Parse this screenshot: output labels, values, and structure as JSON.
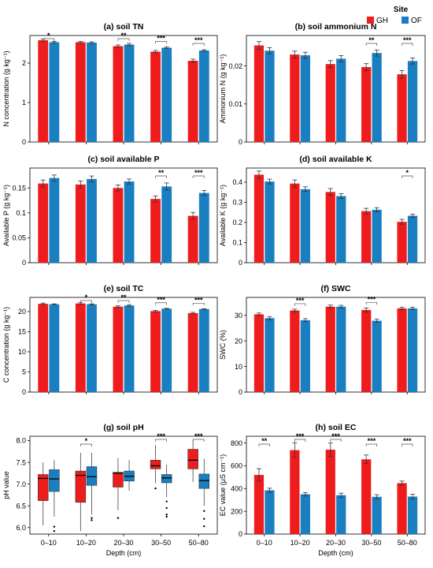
{
  "legend": {
    "title": "Site",
    "items": [
      {
        "label": "GH",
        "color": "#ee1c1c"
      },
      {
        "label": "OF",
        "color": "#1a7fc1"
      }
    ]
  },
  "colors": {
    "GH": "#ee1c1c",
    "OF": "#1a7fc1"
  },
  "chart_data": [
    {
      "type": "bar",
      "title": "(a) soil TN",
      "ylabel": "N concentration (g kg⁻¹)",
      "xlabel": "",
      "categories": [
        "0–10",
        "10–20",
        "20–30",
        "30–50",
        "50–80"
      ],
      "ylim": [
        0,
        2.7
      ],
      "yticks": [
        0,
        1,
        2
      ],
      "ytick_labels": [
        "0",
        "1",
        "2"
      ],
      "show_xticklabels": false,
      "series": [
        {
          "name": "GH",
          "values": [
            2.58,
            2.53,
            2.43,
            2.29,
            2.06
          ],
          "errors": [
            0.03,
            0.02,
            0.03,
            0.03,
            0.04
          ]
        },
        {
          "name": "OF",
          "values": [
            2.53,
            2.52,
            2.47,
            2.39,
            2.32
          ],
          "errors": [
            0.02,
            0.02,
            0.03,
            0.02,
            0.02
          ]
        }
      ],
      "significance": [
        "*",
        "",
        "**",
        "***",
        "***"
      ]
    },
    {
      "type": "bar",
      "title": "(b) soil ammonium N",
      "ylabel": "Ammonium N (g kg⁻¹)",
      "xlabel": "",
      "categories": [
        "0–10",
        "10–20",
        "20–30",
        "30–50",
        "50–80"
      ],
      "ylim": [
        0,
        0.028
      ],
      "yticks": [
        0,
        0.01,
        0.02
      ],
      "ytick_labels": [
        "0",
        "0.01",
        "0.02"
      ],
      "show_xticklabels": false,
      "series": [
        {
          "name": "GH",
          "values": [
            0.0254,
            0.023,
            0.0205,
            0.0197,
            0.0178
          ],
          "errors": [
            0.001,
            0.0009,
            0.0009,
            0.0009,
            0.001
          ]
        },
        {
          "name": "OF",
          "values": [
            0.024,
            0.0228,
            0.0219,
            0.0234,
            0.0213
          ],
          "errors": [
            0.0008,
            0.0008,
            0.0008,
            0.0008,
            0.0008
          ]
        }
      ],
      "significance": [
        "",
        "",
        "",
        "**",
        "***"
      ]
    },
    {
      "type": "bar",
      "title": "(c) soil available P",
      "ylabel": "Available P (g kg⁻¹)",
      "xlabel": "",
      "categories": [
        "0–10",
        "10–20",
        "20–30",
        "30–50",
        "50–80"
      ],
      "ylim": [
        0,
        0.19
      ],
      "yticks": [
        0,
        0.05,
        0.1,
        0.15
      ],
      "ytick_labels": [
        "0",
        "0.05",
        "0.1",
        "0.15"
      ],
      "show_xticklabels": false,
      "series": [
        {
          "name": "GH",
          "values": [
            0.159,
            0.157,
            0.15,
            0.128,
            0.094
          ],
          "errors": [
            0.007,
            0.007,
            0.006,
            0.006,
            0.007
          ]
        },
        {
          "name": "OF",
          "values": [
            0.17,
            0.168,
            0.163,
            0.153,
            0.14
          ],
          "errors": [
            0.006,
            0.006,
            0.005,
            0.007,
            0.005
          ]
        }
      ],
      "significance": [
        "",
        "",
        "",
        "**",
        "***"
      ]
    },
    {
      "type": "bar",
      "title": "(d) soil available K",
      "ylabel": "Available K (g kg⁻¹)",
      "xlabel": "",
      "categories": [
        "0–10",
        "10–20",
        "20–30",
        "30–50",
        "50–80"
      ],
      "ylim": [
        0,
        0.47
      ],
      "yticks": [
        0,
        0.1,
        0.2,
        0.3,
        0.4
      ],
      "ytick_labels": [
        "0",
        "0.1",
        "0.2",
        "0.3",
        "0.4"
      ],
      "show_xticklabels": false,
      "series": [
        {
          "name": "GH",
          "values": [
            0.437,
            0.393,
            0.351,
            0.256,
            0.203
          ],
          "errors": [
            0.018,
            0.018,
            0.017,
            0.014,
            0.012
          ]
        },
        {
          "name": "OF",
          "values": [
            0.403,
            0.365,
            0.331,
            0.263,
            0.233
          ],
          "errors": [
            0.012,
            0.012,
            0.012,
            0.01,
            0.008
          ]
        }
      ],
      "significance": [
        "",
        "",
        "",
        "",
        "*"
      ]
    },
    {
      "type": "bar",
      "title": "(e) soil TC",
      "ylabel": "C concentration (g kg⁻¹)",
      "xlabel": "",
      "categories": [
        "0–10",
        "10–20",
        "20–30",
        "30–50",
        "50–80"
      ],
      "ylim": [
        0,
        23.5
      ],
      "yticks": [
        0,
        5,
        10,
        15,
        20
      ],
      "ytick_labels": [
        "0",
        "5",
        "10",
        "15",
        "20"
      ],
      "show_xticklabels": false,
      "series": [
        {
          "name": "GH",
          "values": [
            21.9,
            22.0,
            21.2,
            20.1,
            19.6
          ],
          "errors": [
            0.2,
            0.2,
            0.2,
            0.2,
            0.2
          ]
        },
        {
          "name": "OF",
          "values": [
            21.8,
            21.8,
            21.5,
            20.7,
            20.6
          ],
          "errors": [
            0.1,
            0.1,
            0.2,
            0.1,
            0.1
          ]
        }
      ],
      "significance": [
        "",
        "*",
        "**",
        "***",
        "***"
      ]
    },
    {
      "type": "bar",
      "title": "(f) SWC",
      "ylabel": "SWC (%)",
      "xlabel": "",
      "categories": [
        "0–10",
        "10–20",
        "20–30",
        "30–50",
        "50–80"
      ],
      "ylim": [
        0,
        37
      ],
      "yticks": [
        0,
        10,
        20,
        30
      ],
      "ytick_labels": [
        "0",
        "10",
        "20",
        "30"
      ],
      "show_xticklabels": false,
      "series": [
        {
          "name": "GH",
          "values": [
            30.4,
            31.9,
            33.4,
            32.1,
            32.7
          ],
          "errors": [
            0.5,
            0.5,
            0.6,
            0.8,
            0.5
          ]
        },
        {
          "name": "OF",
          "values": [
            28.9,
            28.1,
            33.4,
            27.9,
            32.7
          ],
          "errors": [
            0.6,
            0.6,
            0.5,
            0.6,
            0.5
          ]
        }
      ],
      "significance": [
        "",
        "***",
        "",
        "***",
        ""
      ]
    },
    {
      "type": "box",
      "title": "(g) soil pH",
      "ylabel": "pH value",
      "xlabel": "Depth (cm)",
      "categories": [
        "0–10",
        "10–20",
        "20–30",
        "30–50",
        "50–80"
      ],
      "ylim": [
        5.85,
        8.1
      ],
      "yticks": [
        6.0,
        6.5,
        7.0,
        7.5,
        8.0
      ],
      "ytick_labels": [
        "6.0",
        "6.5",
        "7.0",
        "7.5",
        "8.0"
      ],
      "show_xticklabels": true,
      "series": [
        {
          "name": "GH",
          "boxes": [
            {
              "whislo": 6.05,
              "q1": 6.62,
              "med": 7.13,
              "q3": 7.22,
              "whishi": 7.5,
              "fliers": []
            },
            {
              "whislo": 5.92,
              "q1": 6.58,
              "med": 7.2,
              "q3": 7.3,
              "whishi": 7.72,
              "fliers": []
            },
            {
              "whislo": 6.4,
              "q1": 6.93,
              "med": 7.25,
              "q3": 7.27,
              "whishi": 7.6,
              "fliers": [
                6.22
              ]
            },
            {
              "whislo": 7.02,
              "q1": 7.35,
              "med": 7.42,
              "q3": 7.55,
              "whishi": 7.9,
              "fliers": [
                6.9
              ]
            },
            {
              "whislo": 7.05,
              "q1": 7.35,
              "med": 7.55,
              "q3": 7.8,
              "whishi": 8.02,
              "fliers": []
            }
          ]
        },
        {
          "name": "OF",
          "boxes": [
            {
              "whislo": 6.25,
              "q1": 6.83,
              "med": 7.12,
              "q3": 7.33,
              "whishi": 7.55,
              "fliers": [
                6.02,
                5.92
              ]
            },
            {
              "whislo": 6.3,
              "q1": 6.97,
              "med": 7.17,
              "q3": 7.4,
              "whishi": 7.72,
              "fliers": [
                6.22,
                6.17
              ]
            },
            {
              "whislo": 6.85,
              "q1": 7.07,
              "med": 7.18,
              "q3": 7.3,
              "whishi": 7.55,
              "fliers": []
            },
            {
              "whislo": 6.7,
              "q1": 7.03,
              "med": 7.14,
              "q3": 7.22,
              "whishi": 7.45,
              "fliers": [
                6.6,
                6.45,
                6.3,
                6.25
              ]
            },
            {
              "whislo": 6.5,
              "q1": 6.9,
              "med": 7.08,
              "q3": 7.23,
              "whishi": 7.58,
              "fliers": [
                6.38,
                6.2,
                6.03
              ]
            }
          ]
        }
      ],
      "significance": [
        "",
        "*",
        "",
        "***",
        "***"
      ]
    },
    {
      "type": "bar",
      "title": "(h) soil EC",
      "ylabel": "EC value (μS cm⁻¹)",
      "xlabel": "Depth (cm)",
      "categories": [
        "0–10",
        "10–20",
        "20–30",
        "30–50",
        "50–80"
      ],
      "ylim": [
        0,
        860
      ],
      "yticks": [
        0,
        200,
        400,
        600,
        800
      ],
      "ytick_labels": [
        "0",
        "200",
        "400",
        "600",
        "800"
      ],
      "show_xticklabels": true,
      "series": [
        {
          "name": "GH",
          "values": [
            520,
            738,
            742,
            657,
            448
          ],
          "errors": [
            55,
            65,
            60,
            38,
            18
          ]
        },
        {
          "name": "OF",
          "values": [
            385,
            350,
            342,
            328,
            330
          ],
          "errors": [
            18,
            15,
            18,
            18,
            20
          ]
        }
      ],
      "significance": [
        "**",
        "***",
        "***",
        "***",
        "***"
      ]
    }
  ]
}
